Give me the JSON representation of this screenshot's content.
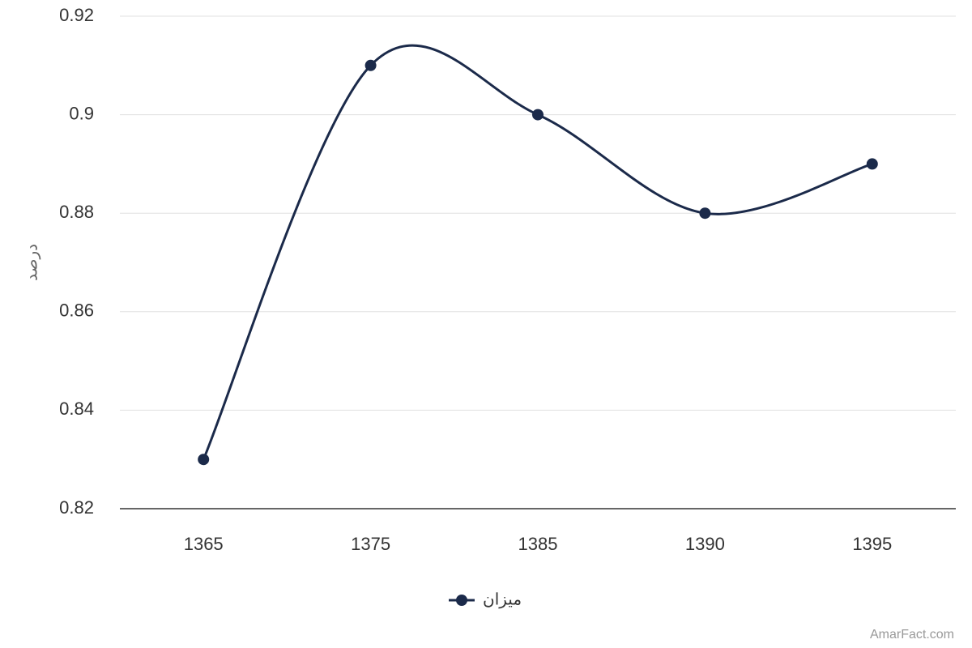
{
  "chart_data": {
    "type": "line",
    "y_label": "درصد",
    "categories": [
      "1365",
      "1375",
      "1385",
      "1390",
      "1395"
    ],
    "series": [
      {
        "name": "میزان",
        "color": "#1b2a4a",
        "values": [
          0.83,
          0.91,
          0.9,
          0.88,
          0.89
        ]
      }
    ],
    "ylim": [
      0.82,
      0.92
    ],
    "yticks": [
      0.82,
      0.84,
      0.86,
      0.88,
      0.9,
      0.92
    ],
    "grid": true,
    "smooth": true,
    "legend": "bottom"
  },
  "credit": "AmarFact.com"
}
